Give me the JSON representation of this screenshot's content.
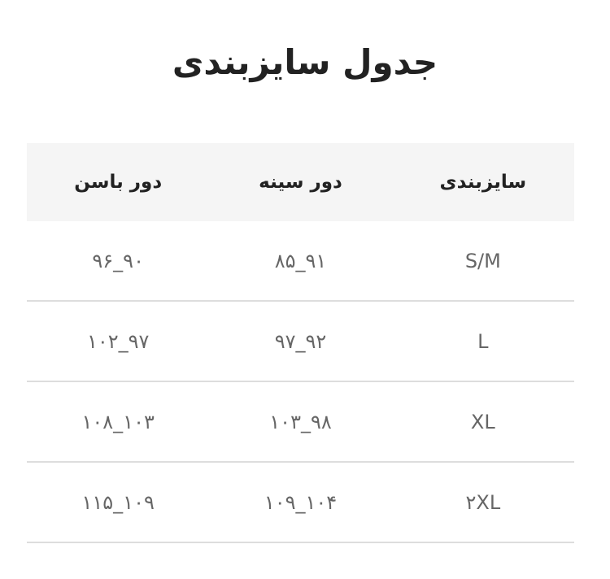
{
  "title": "جدول سایزبندی",
  "headers": [
    "سایزبندی",
    "دور سینه",
    "دور باسن"
  ],
  "rows": [
    [
      "S/M",
      "۸۵_۹۱",
      "۹۶_۹۰"
    ],
    [
      "L",
      "۹۷_۹۲",
      "۱۰۲_۹۷"
    ],
    [
      "XL",
      "۱۰۳_۹۸",
      "۱۰۸_۱۰۳"
    ],
    [
      "۲XL",
      "۱۰۹_۱۰۴",
      "۱۱۵_۱۰۹"
    ]
  ]
}
